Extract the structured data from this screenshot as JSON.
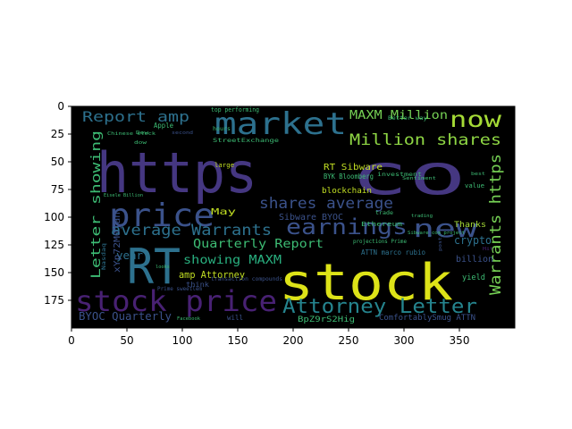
{
  "figure": {
    "background": "#ffffff",
    "axes_background": "#000000",
    "axes_frame_color": "#000000"
  },
  "axes": {
    "x_ticks": [
      "0",
      "50",
      "100",
      "150",
      "200",
      "250",
      "300",
      "350"
    ],
    "y_ticks": [
      "0",
      "25",
      "50",
      "75",
      "100",
      "125",
      "150",
      "175"
    ]
  },
  "wordcloud": {
    "colormap": "viridis",
    "words": [
      {
        "text": "https",
        "color": "#453781"
      },
      {
        "text": "co",
        "color": "#453781"
      },
      {
        "text": "stock",
        "color": "#dde318"
      },
      {
        "text": "RT",
        "color": "#2d718e"
      },
      {
        "text": "market",
        "color": "#2d718e"
      },
      {
        "text": "price",
        "color": "#3b528b"
      },
      {
        "text": "now",
        "color": "#a5db36"
      },
      {
        "text": "new",
        "color": "#3b528b"
      },
      {
        "text": "stock price",
        "color": "#482173"
      },
      {
        "text": "Attorney Letter",
        "color": "#25848e"
      },
      {
        "text": "earnings",
        "color": "#3b528b"
      },
      {
        "text": "shares average",
        "color": "#3b528b"
      },
      {
        "text": "Million shares",
        "color": "#8fd744"
      },
      {
        "text": "Warrants https",
        "color": "#75d054"
      },
      {
        "text": "average Warrants",
        "color": "#2d718e"
      },
      {
        "text": "Report amp",
        "color": "#2d718e"
      },
      {
        "text": "MAXM Million",
        "color": "#75d054"
      },
      {
        "text": "Letter showing",
        "color": "#3dbc74"
      },
      {
        "text": "Quarterly Report",
        "color": "#3dbc74"
      },
      {
        "text": "showing MAXM",
        "color": "#29af7f"
      },
      {
        "text": "BYOC Quarterly",
        "color": "#3b528b"
      },
      {
        "text": "amp Attorney",
        "color": "#c2df23"
      },
      {
        "text": "RT Sibware",
        "color": "#c2df23"
      },
      {
        "text": "blockchain",
        "color": "#c2df23"
      },
      {
        "text": "Sibware BYOC",
        "color": "#3b528b"
      },
      {
        "text": "crypto",
        "color": "#2d718e"
      },
      {
        "text": "year",
        "color": "#2d718e"
      },
      {
        "text": "May",
        "color": "#c2df23"
      },
      {
        "text": "BpZ9rS2Hig",
        "color": "#3dbc74"
      },
      {
        "text": "ComfortablySmug ATTN",
        "color": "#3b528b"
      },
      {
        "text": "Thanks",
        "color": "#a5db36"
      },
      {
        "text": "billion",
        "color": "#3b528b"
      },
      {
        "text": "yield",
        "color": "#3dbc74"
      },
      {
        "text": "xYp72M0jan",
        "color": "#3b528b"
      },
      {
        "text": "ATTN marco rubio",
        "color": "#2d718e"
      },
      {
        "text": "BYK Bloomberg",
        "color": "#3dbc74"
      },
      {
        "text": "top performing",
        "color": "#3dbc74"
      },
      {
        "text": "large",
        "color": "#c2df23"
      },
      {
        "text": "think",
        "color": "#3b528b"
      },
      {
        "text": "will",
        "color": "#3b528b"
      },
      {
        "text": "Apple",
        "color": "#3dbc74"
      },
      {
        "text": "hours",
        "color": "#3dbc74"
      },
      {
        "text": "value",
        "color": "#3dbc74"
      },
      {
        "text": "trade",
        "color": "#3dbc74"
      },
      {
        "text": "Ethereum",
        "color": "#3dbc74"
      },
      {
        "text": "investment",
        "color": "#3dbc74"
      },
      {
        "text": "projections Prime",
        "color": "#3dbc74"
      },
      {
        "text": "Nasdaq",
        "color": "#2d718e"
      },
      {
        "text": "Prime sweetlem",
        "color": "#3b528b"
      },
      {
        "text": "looks",
        "color": "#3dbc74"
      },
      {
        "text": "transaction compounds",
        "color": "#3b528b"
      },
      {
        "text": "StreetExchange",
        "color": "#3dbc74"
      },
      {
        "text": "Better way",
        "color": "#3dbc74"
      },
      {
        "text": "Facebook",
        "color": "#3dbc74"
      },
      {
        "text": "trading",
        "color": "#3dbc74"
      },
      {
        "text": "best",
        "color": "#3dbc74"
      },
      {
        "text": "second",
        "color": "#3b528b"
      },
      {
        "text": "Sibware_com_project",
        "color": "#3dbc74"
      },
      {
        "text": "Eisele Billion",
        "color": "#3dbc74"
      },
      {
        "text": "Sentiment",
        "color": "#3dbc74"
      },
      {
        "text": "dow",
        "color": "#3dbc74"
      },
      {
        "text": "post",
        "color": "#3b528b"
      },
      {
        "text": "Dow",
        "color": "#3dbc74"
      },
      {
        "text": "Hit",
        "color": "#482173"
      },
      {
        "text": "Chinese stock",
        "color": "#3dbc74"
      }
    ]
  }
}
